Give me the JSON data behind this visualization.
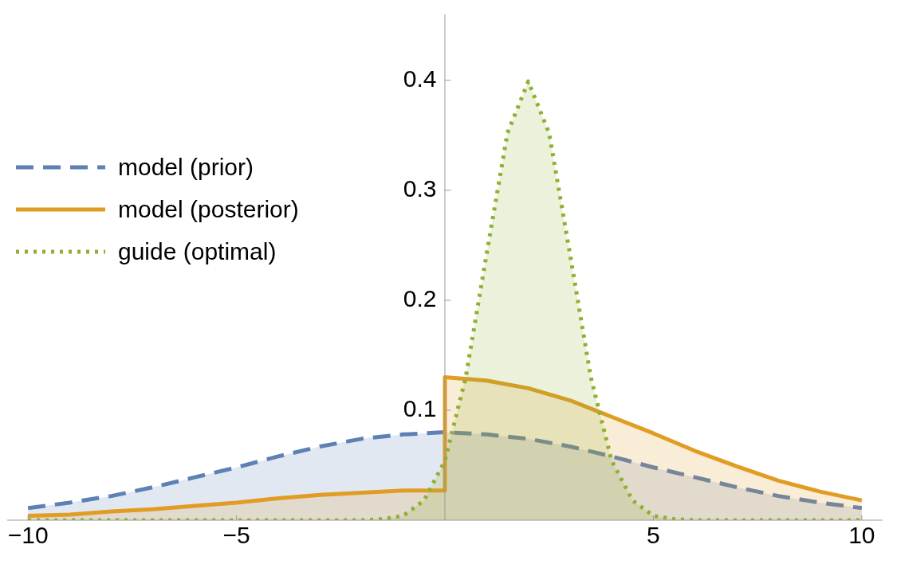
{
  "chart_data": {
    "type": "area",
    "xlim": [
      -10.5,
      10.5
    ],
    "xticks": [
      {
        "value": -10,
        "label": "−10"
      },
      {
        "value": -5,
        "label": "−5"
      },
      5,
      10
    ],
    "ylim": [
      0,
      0.46
    ],
    "yticks": [
      0.1,
      0.2,
      0.3,
      0.4
    ],
    "legend": "left",
    "series": [
      {
        "name": "model (prior)",
        "color": "#5e81b5",
        "line_style": "dashed",
        "x": [
          -10,
          -9,
          -8,
          -7,
          -6,
          -5,
          -4,
          -3,
          -2,
          -1,
          0,
          1,
          2,
          3,
          4,
          5,
          6,
          7,
          8,
          9,
          10
        ],
        "values": [
          0.011,
          0.016,
          0.022,
          0.03,
          0.039,
          0.048,
          0.058,
          0.067,
          0.074,
          0.078,
          0.08,
          0.078,
          0.074,
          0.067,
          0.058,
          0.048,
          0.039,
          0.03,
          0.022,
          0.016,
          0.011
        ]
      },
      {
        "name": "model (posterior)",
        "color": "#e19c24",
        "line_style": "solid",
        "x": [
          -10,
          -9,
          -8,
          -7,
          -6,
          -5,
          -4,
          -3,
          -2,
          -1,
          0,
          0,
          1,
          2,
          3,
          4,
          5,
          6,
          7,
          8,
          9,
          10
        ],
        "values": [
          0.004,
          0.005,
          0.008,
          0.01,
          0.013,
          0.016,
          0.02,
          0.023,
          0.025,
          0.027,
          0.027,
          0.13,
          0.127,
          0.12,
          0.109,
          0.094,
          0.079,
          0.063,
          0.049,
          0.036,
          0.026,
          0.018
        ]
      },
      {
        "name": "guide (optimal)",
        "color": "#8fb032",
        "line_style": "dotted",
        "x": [
          -10,
          -2,
          -1.5,
          -1,
          -0.5,
          0,
          0.5,
          1,
          1.5,
          2,
          2.5,
          3,
          3.5,
          4,
          4.5,
          5,
          5.5,
          6,
          10
        ],
        "values": [
          0,
          0,
          0.001,
          0.004,
          0.018,
          0.054,
          0.13,
          0.242,
          0.352,
          0.399,
          0.352,
          0.242,
          0.13,
          0.054,
          0.018,
          0.004,
          0.001,
          0,
          0
        ]
      }
    ]
  }
}
